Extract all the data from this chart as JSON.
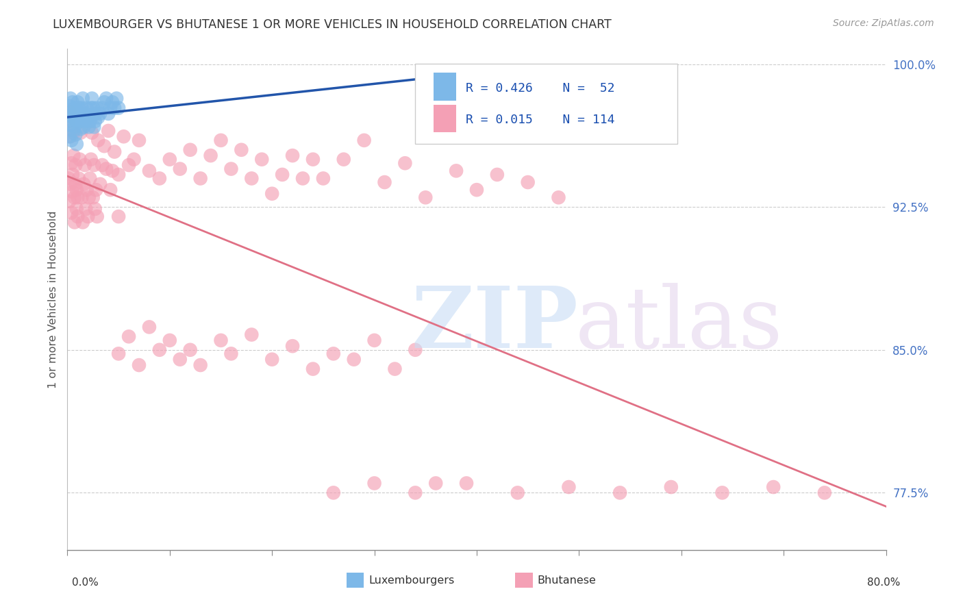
{
  "title": "LUXEMBOURGER VS BHUTANESE 1 OR MORE VEHICLES IN HOUSEHOLD CORRELATION CHART",
  "source": "Source: ZipAtlas.com",
  "ylabel": "1 or more Vehicles in Household",
  "ytick_labels": [
    "100.0%",
    "92.5%",
    "85.0%",
    "77.5%"
  ],
  "ytick_values": [
    1.0,
    0.925,
    0.85,
    0.775
  ],
  "lux_color": "#7db8e8",
  "bhu_color": "#f4a0b5",
  "lux_line_color": "#2255aa",
  "bhu_line_color": "#e07085",
  "background_color": "#ffffff",
  "grid_color": "#cccccc",
  "title_color": "#333333",
  "right_tick_color": "#4472c4",
  "xmin": 0.0,
  "xmax": 0.8,
  "ymin": 0.745,
  "ymax": 1.008,
  "lux_x": [
    0.001,
    0.002,
    0.002,
    0.003,
    0.003,
    0.004,
    0.004,
    0.005,
    0.005,
    0.006,
    0.006,
    0.007,
    0.007,
    0.008,
    0.008,
    0.009,
    0.009,
    0.01,
    0.01,
    0.011,
    0.011,
    0.012,
    0.013,
    0.014,
    0.015,
    0.016,
    0.017,
    0.018,
    0.019,
    0.02,
    0.021,
    0.022,
    0.023,
    0.024,
    0.025,
    0.026,
    0.027,
    0.028,
    0.029,
    0.03,
    0.032,
    0.034,
    0.036,
    0.038,
    0.04,
    0.042,
    0.044,
    0.046,
    0.048,
    0.05,
    0.355,
    0.365
  ],
  "lux_y": [
    0.973,
    0.978,
    0.962,
    0.968,
    0.982,
    0.975,
    0.96,
    0.97,
    0.98,
    0.965,
    0.972,
    0.977,
    0.967,
    0.963,
    0.974,
    0.958,
    0.97,
    0.98,
    0.972,
    0.975,
    0.977,
    0.97,
    0.966,
    0.977,
    0.982,
    0.967,
    0.97,
    0.974,
    0.977,
    0.972,
    0.967,
    0.97,
    0.977,
    0.982,
    0.977,
    0.967,
    0.97,
    0.974,
    0.977,
    0.972,
    0.974,
    0.977,
    0.98,
    0.982,
    0.974,
    0.977,
    0.98,
    0.977,
    0.982,
    0.977,
    0.99,
    0.993
  ],
  "bhu_x": [
    0.001,
    0.001,
    0.002,
    0.002,
    0.003,
    0.003,
    0.004,
    0.004,
    0.005,
    0.005,
    0.006,
    0.006,
    0.007,
    0.007,
    0.008,
    0.008,
    0.009,
    0.009,
    0.01,
    0.01,
    0.011,
    0.012,
    0.013,
    0.014,
    0.015,
    0.016,
    0.017,
    0.018,
    0.019,
    0.02,
    0.021,
    0.022,
    0.023,
    0.024,
    0.025,
    0.026,
    0.027,
    0.028,
    0.029,
    0.03,
    0.032,
    0.034,
    0.036,
    0.038,
    0.04,
    0.042,
    0.044,
    0.046,
    0.05,
    0.055,
    0.06,
    0.065,
    0.07,
    0.08,
    0.09,
    0.1,
    0.11,
    0.12,
    0.13,
    0.14,
    0.15,
    0.16,
    0.17,
    0.18,
    0.19,
    0.2,
    0.21,
    0.22,
    0.23,
    0.24,
    0.25,
    0.27,
    0.29,
    0.31,
    0.33,
    0.35,
    0.38,
    0.4,
    0.42,
    0.45,
    0.48,
    0.05,
    0.06,
    0.08,
    0.1,
    0.12,
    0.15,
    0.18,
    0.22,
    0.26,
    0.3,
    0.34,
    0.05,
    0.07,
    0.09,
    0.11,
    0.13,
    0.16,
    0.2,
    0.24,
    0.28,
    0.32,
    0.36,
    0.26,
    0.3,
    0.34,
    0.39,
    0.44,
    0.49,
    0.54,
    0.59,
    0.64,
    0.69,
    0.74
  ],
  "bhu_y": [
    0.97,
    0.94,
    0.975,
    0.928,
    0.962,
    0.937,
    0.948,
    0.922,
    0.933,
    0.942,
    0.952,
    0.964,
    0.93,
    0.917,
    0.937,
    0.947,
    0.924,
    0.934,
    0.92,
    0.93,
    0.94,
    0.95,
    0.964,
    0.93,
    0.917,
    0.937,
    0.947,
    0.924,
    0.934,
    0.92,
    0.93,
    0.94,
    0.95,
    0.964,
    0.93,
    0.947,
    0.924,
    0.934,
    0.92,
    0.96,
    0.937,
    0.947,
    0.957,
    0.945,
    0.965,
    0.934,
    0.944,
    0.954,
    0.942,
    0.962,
    0.947,
    0.95,
    0.96,
    0.944,
    0.94,
    0.95,
    0.945,
    0.955,
    0.94,
    0.952,
    0.96,
    0.945,
    0.955,
    0.94,
    0.95,
    0.932,
    0.942,
    0.952,
    0.94,
    0.95,
    0.94,
    0.95,
    0.96,
    0.938,
    0.948,
    0.93,
    0.944,
    0.934,
    0.942,
    0.938,
    0.93,
    0.92,
    0.857,
    0.862,
    0.855,
    0.85,
    0.855,
    0.858,
    0.852,
    0.848,
    0.855,
    0.85,
    0.848,
    0.842,
    0.85,
    0.845,
    0.842,
    0.848,
    0.845,
    0.84,
    0.845,
    0.84,
    0.78,
    0.775,
    0.78,
    0.775,
    0.78,
    0.775,
    0.778,
    0.775,
    0.778,
    0.775,
    0.778,
    0.775
  ]
}
